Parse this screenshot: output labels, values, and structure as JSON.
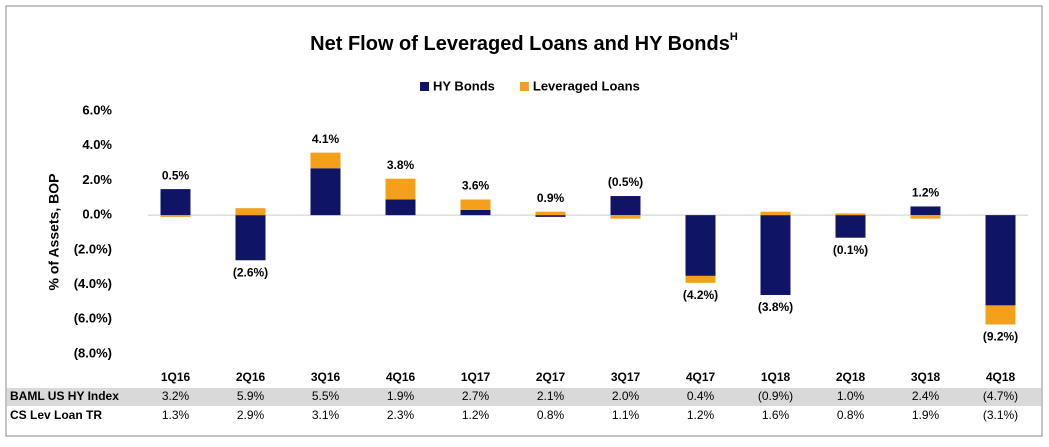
{
  "chart_data": {
    "type": "bar",
    "title": "Net Flow of Leveraged Loans and HY Bonds",
    "title_superscript": "H",
    "ylabel": "% of Assets, BOP",
    "categories": [
      "1Q16",
      "2Q16",
      "3Q16",
      "4Q16",
      "1Q17",
      "2Q17",
      "3Q17",
      "4Q17",
      "1Q18",
      "2Q18",
      "3Q18",
      "4Q18"
    ],
    "series": [
      {
        "name": "HY Bonds",
        "color": "#0f1464",
        "values": [
          1.5,
          -2.6,
          2.7,
          0.9,
          0.3,
          -0.1,
          1.1,
          -3.5,
          -4.6,
          -1.3,
          0.5,
          -5.2
        ]
      },
      {
        "name": "Leveraged Loans",
        "color": "#f5a01a",
        "values": [
          -0.1,
          0.4,
          0.9,
          1.2,
          0.6,
          0.2,
          -0.2,
          -0.4,
          0.2,
          0.1,
          -0.2,
          -1.1
        ]
      }
    ],
    "bar_labels": [
      "0.5%",
      "(2.6%)",
      "4.1%",
      "3.8%",
      "3.6%",
      "0.9%",
      "(0.5%)",
      "(4.2%)",
      "(3.8%)",
      "(0.1%)",
      "1.2%",
      "(9.2%)"
    ],
    "ylim": [
      -8,
      6
    ],
    "yticks": [
      {
        "value": -8,
        "label": "(8.0%)"
      },
      {
        "value": -6,
        "label": "(6.0%)"
      },
      {
        "value": -4,
        "label": "(4.0%)"
      },
      {
        "value": -2,
        "label": "(2.0%)"
      },
      {
        "value": 0,
        "label": "0.0%"
      },
      {
        "value": 2,
        "label": "2.0%"
      },
      {
        "value": 4,
        "label": "4.0%"
      },
      {
        "value": 6,
        "label": "6.0%"
      }
    ],
    "legend": "top",
    "table": {
      "rows": [
        {
          "label": "BAML US HY Index",
          "values": [
            "3.2%",
            "5.9%",
            "5.5%",
            "1.9%",
            "2.7%",
            "2.1%",
            "2.0%",
            "0.4%",
            "(0.9%)",
            "1.0%",
            "2.4%",
            "(4.7%)"
          ]
        },
        {
          "label": "CS Lev Loan TR",
          "values": [
            "1.3%",
            "2.9%",
            "3.1%",
            "2.3%",
            "1.2%",
            "0.8%",
            "1.1%",
            "1.2%",
            "1.6%",
            "0.8%",
            "1.9%",
            "(3.1%)"
          ]
        }
      ]
    }
  }
}
